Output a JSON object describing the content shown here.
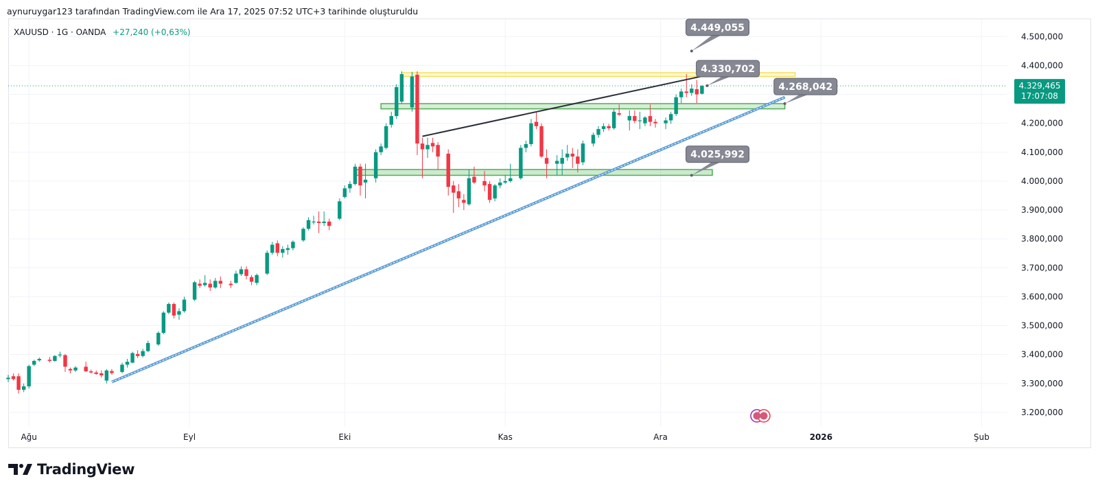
{
  "header": {
    "attribution": "aynuruygar123 tarafından TradingView.com ile Ara 17, 2025 07:52 UTC+3 tarihinde oluşturuldu"
  },
  "legend": {
    "symbol": "XAUUSD · 1G · OANDA",
    "change": "+27,240 (+0,63%)"
  },
  "brand": {
    "name": "TradingView",
    "logo_icon": "tradingview-logo-icon"
  },
  "colors": {
    "up": "#089981",
    "down": "#f23645",
    "trendline_blue": "#5b9bd5",
    "trendline_dark": "#2a2e39",
    "zone_green": "#4caf50",
    "zone_yellow": "#f5e05a",
    "callout_bg": "#868993",
    "price_label_bg": "#089981",
    "grid": "#f0f3fa"
  },
  "chart_data": {
    "type": "candlestick",
    "symbol": "XAUUSD",
    "interval": "1G",
    "exchange": "OANDA",
    "ylim": [
      3150000,
      4560000
    ],
    "y_ticks": [
      3200000,
      3300000,
      3400000,
      3500000,
      3600000,
      3700000,
      3800000,
      3900000,
      4000000,
      4100000,
      4200000,
      4300000,
      4400000,
      4500000
    ],
    "y_tick_labels": [
      "3.200,000",
      "3.300,000",
      "3.400,000",
      "3.500,000",
      "3.600,000",
      "3.700,000",
      "3.800,000",
      "3.900,000",
      "4.000,000",
      "4.100,000",
      "4.200,000",
      "4.300,000",
      "4.400,000",
      "4.500,000"
    ],
    "x_ticks": [
      {
        "label": "Ağu",
        "day": 0
      },
      {
        "label": "Eyl",
        "day": 31
      },
      {
        "label": "Eki",
        "day": 61
      },
      {
        "label": "Kas",
        "day": 92
      },
      {
        "label": "Ara",
        "day": 122
      },
      {
        "label": "2026",
        "day": 153,
        "bold": true
      },
      {
        "label": "Şub",
        "day": 184
      }
    ],
    "xlim_days": [
      -4,
      189
    ],
    "candles": [
      {
        "d": -4,
        "o": 3315000,
        "h": 3330000,
        "l": 3305000,
        "c": 3320000
      },
      {
        "d": -3,
        "o": 3325000,
        "h": 3335000,
        "l": 3310000,
        "c": 3315000
      },
      {
        "d": -2,
        "o": 3325000,
        "h": 3335000,
        "l": 3265000,
        "c": 3278000
      },
      {
        "d": -1,
        "o": 3278000,
        "h": 3300000,
        "l": 3270000,
        "c": 3290000
      },
      {
        "d": 0,
        "o": 3290000,
        "h": 3365000,
        "l": 3282000,
        "c": 3360000
      },
      {
        "d": 1,
        "o": 3365000,
        "h": 3382000,
        "l": 3360000,
        "c": 3378000
      },
      {
        "d": 2,
        "o": 3380000,
        "h": 3390000,
        "l": 3375000,
        "c": 3385000
      },
      {
        "d": 4,
        "o": 3382000,
        "h": 3392000,
        "l": 3372000,
        "c": 3378000
      },
      {
        "d": 5,
        "o": 3378000,
        "h": 3398000,
        "l": 3375000,
        "c": 3395000
      },
      {
        "d": 6,
        "o": 3398000,
        "h": 3410000,
        "l": 3390000,
        "c": 3400000
      },
      {
        "d": 7,
        "o": 3398000,
        "h": 3402000,
        "l": 3340000,
        "c": 3358000
      },
      {
        "d": 8,
        "o": 3350000,
        "h": 3355000,
        "l": 3335000,
        "c": 3345000
      },
      {
        "d": 9,
        "o": 3345000,
        "h": 3360000,
        "l": 3340000,
        "c": 3355000
      },
      {
        "d": 11,
        "o": 3358000,
        "h": 3375000,
        "l": 3340000,
        "c": 3342000
      },
      {
        "d": 12,
        "o": 3342000,
        "h": 3348000,
        "l": 3335000,
        "c": 3338000
      },
      {
        "d": 13,
        "o": 3338000,
        "h": 3345000,
        "l": 3330000,
        "c": 3333000
      },
      {
        "d": 14,
        "o": 3335000,
        "h": 3345000,
        "l": 3320000,
        "c": 3328000
      },
      {
        "d": 15,
        "o": 3310000,
        "h": 3350000,
        "l": 3300000,
        "c": 3345000
      },
      {
        "d": 16,
        "o": 3343000,
        "h": 3350000,
        "l": 3330000,
        "c": 3336000
      },
      {
        "d": 18,
        "o": 3340000,
        "h": 3372000,
        "l": 3335000,
        "c": 3365000
      },
      {
        "d": 19,
        "o": 3365000,
        "h": 3385000,
        "l": 3355000,
        "c": 3375000
      },
      {
        "d": 20,
        "o": 3372000,
        "h": 3410000,
        "l": 3370000,
        "c": 3405000
      },
      {
        "d": 21,
        "o": 3402000,
        "h": 3415000,
        "l": 3388000,
        "c": 3395000
      },
      {
        "d": 22,
        "o": 3395000,
        "h": 3420000,
        "l": 3390000,
        "c": 3412000
      },
      {
        "d": 23,
        "o": 3412000,
        "h": 3448000,
        "l": 3408000,
        "c": 3440000
      },
      {
        "d": 25,
        "o": 3435000,
        "h": 3480000,
        "l": 3430000,
        "c": 3475000
      },
      {
        "d": 26,
        "o": 3475000,
        "h": 3550000,
        "l": 3470000,
        "c": 3545000
      },
      {
        "d": 27,
        "o": 3545000,
        "h": 3580000,
        "l": 3540000,
        "c": 3575000
      },
      {
        "d": 28,
        "o": 3575000,
        "h": 3580000,
        "l": 3525000,
        "c": 3535000
      },
      {
        "d": 29,
        "o": 3538000,
        "h": 3560000,
        "l": 3520000,
        "c": 3550000
      },
      {
        "d": 30,
        "o": 3550000,
        "h": 3600000,
        "l": 3545000,
        "c": 3590000
      },
      {
        "d": 32,
        "o": 3590000,
        "h": 3655000,
        "l": 3585000,
        "c": 3650000
      },
      {
        "d": 33,
        "o": 3645000,
        "h": 3660000,
        "l": 3630000,
        "c": 3638000
      },
      {
        "d": 34,
        "o": 3640000,
        "h": 3675000,
        "l": 3635000,
        "c": 3648000
      },
      {
        "d": 35,
        "o": 3645000,
        "h": 3660000,
        "l": 3620000,
        "c": 3632000
      },
      {
        "d": 36,
        "o": 3632000,
        "h": 3665000,
        "l": 3628000,
        "c": 3655000
      },
      {
        "d": 37,
        "o": 3655000,
        "h": 3670000,
        "l": 3630000,
        "c": 3645000
      },
      {
        "d": 39,
        "o": 3645000,
        "h": 3655000,
        "l": 3630000,
        "c": 3640000
      },
      {
        "d": 40,
        "o": 3648000,
        "h": 3690000,
        "l": 3645000,
        "c": 3680000
      },
      {
        "d": 41,
        "o": 3678000,
        "h": 3705000,
        "l": 3672000,
        "c": 3695000
      },
      {
        "d": 42,
        "o": 3695000,
        "h": 3705000,
        "l": 3660000,
        "c": 3672000
      },
      {
        "d": 43,
        "o": 3668000,
        "h": 3675000,
        "l": 3640000,
        "c": 3652000
      },
      {
        "d": 44,
        "o": 3648000,
        "h": 3680000,
        "l": 3640000,
        "c": 3675000
      },
      {
        "d": 46,
        "o": 3680000,
        "h": 3760000,
        "l": 3675000,
        "c": 3752000
      },
      {
        "d": 47,
        "o": 3752000,
        "h": 3790000,
        "l": 3745000,
        "c": 3780000
      },
      {
        "d": 48,
        "o": 3785000,
        "h": 3795000,
        "l": 3740000,
        "c": 3752000
      },
      {
        "d": 49,
        "o": 3752000,
        "h": 3775000,
        "l": 3735000,
        "c": 3765000
      },
      {
        "d": 50,
        "o": 3762000,
        "h": 3780000,
        "l": 3745000,
        "c": 3768000
      },
      {
        "d": 51,
        "o": 3768000,
        "h": 3795000,
        "l": 3760000,
        "c": 3790000
      },
      {
        "d": 53,
        "o": 3795000,
        "h": 3840000,
        "l": 3790000,
        "c": 3835000
      },
      {
        "d": 54,
        "o": 3835000,
        "h": 3875000,
        "l": 3830000,
        "c": 3865000
      },
      {
        "d": 55,
        "o": 3860000,
        "h": 3880000,
        "l": 3850000,
        "c": 3860000
      },
      {
        "d": 56,
        "o": 3860000,
        "h": 3895000,
        "l": 3820000,
        "c": 3855000
      },
      {
        "d": 57,
        "o": 3855000,
        "h": 3895000,
        "l": 3845000,
        "c": 3860000
      },
      {
        "d": 58,
        "o": 3860000,
        "h": 3870000,
        "l": 3830000,
        "c": 3845000
      },
      {
        "d": 60,
        "o": 3870000,
        "h": 3940000,
        "l": 3865000,
        "c": 3930000
      },
      {
        "d": 61,
        "o": 3945000,
        "h": 3985000,
        "l": 3940000,
        "c": 3975000
      },
      {
        "d": 62,
        "o": 3975000,
        "h": 4000000,
        "l": 3960000,
        "c": 3990000
      },
      {
        "d": 63,
        "o": 3990000,
        "h": 4060000,
        "l": 3985000,
        "c": 4050000
      },
      {
        "d": 64,
        "o": 4050000,
        "h": 4060000,
        "l": 3950000,
        "c": 3985000
      },
      {
        "d": 65,
        "o": 3995000,
        "h": 4060000,
        "l": 3940000,
        "c": 4005000
      },
      {
        "d": 67,
        "o": 4010000,
        "h": 4110000,
        "l": 3995000,
        "c": 4100000
      },
      {
        "d": 68,
        "o": 4100000,
        "h": 4130000,
        "l": 4090000,
        "c": 4120000
      },
      {
        "d": 69,
        "o": 4115000,
        "h": 4200000,
        "l": 4110000,
        "c": 4190000
      },
      {
        "d": 70,
        "o": 4195000,
        "h": 4240000,
        "l": 4185000,
        "c": 4225000
      },
      {
        "d": 71,
        "o": 4225000,
        "h": 4335000,
        "l": 4215000,
        "c": 4325000
      },
      {
        "d": 72,
        "o": 4275000,
        "h": 4380000,
        "l": 4268000,
        "c": 4370000
      },
      {
        "d": 74,
        "o": 4255000,
        "h": 4378000,
        "l": 4240000,
        "c": 4362000
      },
      {
        "d": 75,
        "o": 4368000,
        "h": 4380000,
        "l": 4090000,
        "c": 4130000
      },
      {
        "d": 76,
        "o": 4130000,
        "h": 4150000,
        "l": 4010000,
        "c": 4110000
      },
      {
        "d": 77,
        "o": 4110000,
        "h": 4150000,
        "l": 4080000,
        "c": 4125000
      },
      {
        "d": 78,
        "o": 4132000,
        "h": 4150000,
        "l": 4100000,
        "c": 4120000
      },
      {
        "d": 79,
        "o": 4125000,
        "h": 4135000,
        "l": 4040000,
        "c": 4085000
      },
      {
        "d": 81,
        "o": 4095000,
        "h": 4110000,
        "l": 3950000,
        "c": 3980000
      },
      {
        "d": 82,
        "o": 3985000,
        "h": 4000000,
        "l": 3890000,
        "c": 3960000
      },
      {
        "d": 83,
        "o": 3965000,
        "h": 3990000,
        "l": 3910000,
        "c": 3940000
      },
      {
        "d": 84,
        "o": 3935000,
        "h": 3955000,
        "l": 3900000,
        "c": 3925000
      },
      {
        "d": 85,
        "o": 3920000,
        "h": 4040000,
        "l": 3915000,
        "c": 4010000
      },
      {
        "d": 86,
        "o": 4015000,
        "h": 4050000,
        "l": 3990000,
        "c": 3995000
      },
      {
        "d": 88,
        "o": 4000000,
        "h": 4035000,
        "l": 3965000,
        "c": 3985000
      },
      {
        "d": 89,
        "o": 3990000,
        "h": 4000000,
        "l": 3925000,
        "c": 3935000
      },
      {
        "d": 90,
        "o": 3940000,
        "h": 3990000,
        "l": 3930000,
        "c": 3985000
      },
      {
        "d": 91,
        "o": 3985000,
        "h": 4010000,
        "l": 3975000,
        "c": 3995000
      },
      {
        "d": 92,
        "o": 3995000,
        "h": 4020000,
        "l": 3990000,
        "c": 4000000
      },
      {
        "d": 93,
        "o": 4000000,
        "h": 4060000,
        "l": 3995000,
        "c": 4010000
      },
      {
        "d": 95,
        "o": 4010000,
        "h": 4125000,
        "l": 4005000,
        "c": 4115000
      },
      {
        "d": 96,
        "o": 4115000,
        "h": 4140000,
        "l": 4100000,
        "c": 4128000
      },
      {
        "d": 97,
        "o": 4128000,
        "h": 4215000,
        "l": 4120000,
        "c": 4200000
      },
      {
        "d": 98,
        "o": 4205000,
        "h": 4240000,
        "l": 4180000,
        "c": 4190000
      },
      {
        "d": 99,
        "o": 4190000,
        "h": 4200000,
        "l": 4080000,
        "c": 4085000
      },
      {
        "d": 100,
        "o": 4080000,
        "h": 4110000,
        "l": 4010000,
        "c": 4060000
      },
      {
        "d": 102,
        "o": 4060000,
        "h": 4090000,
        "l": 4020000,
        "c": 4070000
      },
      {
        "d": 103,
        "o": 4060000,
        "h": 4110000,
        "l": 4020000,
        "c": 4080000
      },
      {
        "d": 104,
        "o": 4082000,
        "h": 4125000,
        "l": 4070000,
        "c": 4095000
      },
      {
        "d": 105,
        "o": 4095000,
        "h": 4115000,
        "l": 4045000,
        "c": 4085000
      },
      {
        "d": 106,
        "o": 4085000,
        "h": 4110000,
        "l": 4030000,
        "c": 4060000
      },
      {
        "d": 107,
        "o": 4065000,
        "h": 4140000,
        "l": 4055000,
        "c": 4130000
      },
      {
        "d": 109,
        "o": 4130000,
        "h": 4168000,
        "l": 4120000,
        "c": 4160000
      },
      {
        "d": 110,
        "o": 4160000,
        "h": 4190000,
        "l": 4150000,
        "c": 4180000
      },
      {
        "d": 111,
        "o": 4180000,
        "h": 4200000,
        "l": 4170000,
        "c": 4190000
      },
      {
        "d": 112,
        "o": 4190000,
        "h": 4198000,
        "l": 4175000,
        "c": 4183000
      },
      {
        "d": 113,
        "o": 4183000,
        "h": 4250000,
        "l": 4178000,
        "c": 4240000
      },
      {
        "d": 114,
        "o": 4235000,
        "h": 4265000,
        "l": 4225000,
        "c": 4230000
      },
      {
        "d": 116,
        "o": 4210000,
        "h": 4245000,
        "l": 4175000,
        "c": 4225000
      },
      {
        "d": 117,
        "o": 4225000,
        "h": 4245000,
        "l": 4200000,
        "c": 4208000
      },
      {
        "d": 118,
        "o": 4210000,
        "h": 4240000,
        "l": 4180000,
        "c": 4210000
      },
      {
        "d": 119,
        "o": 4200000,
        "h": 4225000,
        "l": 4190000,
        "c": 4220000
      },
      {
        "d": 120,
        "o": 4225000,
        "h": 4265000,
        "l": 4190000,
        "c": 4205000
      },
      {
        "d": 121,
        "o": 4205000,
        "h": 4215000,
        "l": 4185000,
        "c": 4200000
      },
      {
        "d": 123,
        "o": 4200000,
        "h": 4220000,
        "l": 4180000,
        "c": 4210000
      },
      {
        "d": 124,
        "o": 4210000,
        "h": 4240000,
        "l": 4198000,
        "c": 4232000
      },
      {
        "d": 125,
        "o": 4232000,
        "h": 4300000,
        "l": 4225000,
        "c": 4290000
      },
      {
        "d": 126,
        "o": 4290000,
        "h": 4320000,
        "l": 4270000,
        "c": 4310000
      },
      {
        "d": 127,
        "o": 4310000,
        "h": 4370000,
        "l": 4290000,
        "c": 4305000
      },
      {
        "d": 128,
        "o": 4305000,
        "h": 4335000,
        "l": 4295000,
        "c": 4320000
      },
      {
        "d": 129,
        "o": 4318000,
        "h": 4350000,
        "l": 4270000,
        "c": 4300000
      },
      {
        "d": 130,
        "o": 4302000,
        "h": 4332000,
        "l": 4300000,
        "c": 4329465
      }
    ],
    "annotations": {
      "trendline_support": {
        "from": {
          "day": 16,
          "price": 3305000
        },
        "to": {
          "day": 146,
          "price": 4290000
        }
      },
      "trendline_resistance": {
        "from": {
          "day": 76,
          "price": 4155000
        },
        "to": {
          "day": 141,
          "price": 4405000
        }
      },
      "zone_top_yellow": {
        "from_day": 72,
        "to_day": 148,
        "top": 4375000,
        "bottom": 4362000
      },
      "zone_mid_green": {
        "from_day": 68,
        "to_day": 146,
        "top": 4268000,
        "bottom": 4250000
      },
      "zone_low_green": {
        "from_day": 63,
        "to_day": 132,
        "top": 4040000,
        "bottom": 4020000
      },
      "callouts": [
        {
          "label": "4.449,055",
          "anchor_day": 128,
          "anchor_price": 4450000,
          "box_day": 133,
          "box_price": 4532000
        },
        {
          "label": "4.330,702",
          "anchor_day": 131,
          "anchor_price": 4330000,
          "box_day": 135,
          "box_price": 4389000
        },
        {
          "label": "4.268,042",
          "anchor_day": 146,
          "anchor_price": 4268000,
          "box_day": 150,
          "box_price": 4327000
        },
        {
          "label": "4.025,992",
          "anchor_day": 128,
          "anchor_price": 4020000,
          "box_day": 133,
          "box_price": 4093000
        }
      ]
    },
    "last_price_label": "4.329,465",
    "last_price_countdown": "17:07:08",
    "last_price": 4329465
  }
}
